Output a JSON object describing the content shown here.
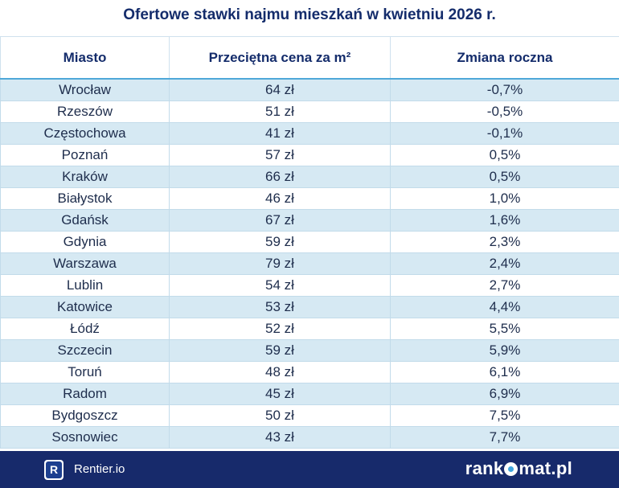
{
  "title": "Ofertowe stawki najmu mieszkań w kwietniu 2026 r.",
  "columns": [
    "Miasto",
    "Przeciętna cena za m²",
    "Zmiana roczna"
  ],
  "rows": [
    [
      "Wrocław",
      "64 zł",
      "-0,7%"
    ],
    [
      "Rzeszów",
      "51 zł",
      "-0,5%"
    ],
    [
      "Częstochowa",
      "41 zł",
      "-0,1%"
    ],
    [
      "Poznań",
      "57 zł",
      "0,5%"
    ],
    [
      "Kraków",
      "66 zł",
      "0,5%"
    ],
    [
      "Białystok",
      "46 zł",
      "1,0%"
    ],
    [
      "Gdańsk",
      "67 zł",
      "1,6%"
    ],
    [
      "Gdynia",
      "59 zł",
      "2,3%"
    ],
    [
      "Warszawa",
      "79 zł",
      "2,4%"
    ],
    [
      "Lublin",
      "54 zł",
      "2,7%"
    ],
    [
      "Katowice",
      "53 zł",
      "4,4%"
    ],
    [
      "Łódź",
      "52 zł",
      "5,5%"
    ],
    [
      "Szczecin",
      "59 zł",
      "5,9%"
    ],
    [
      "Toruń",
      "48 zł",
      "6,1%"
    ],
    [
      "Radom",
      "45 zł",
      "6,9%"
    ],
    [
      "Bydgoszcz",
      "50 zł",
      "7,5%"
    ],
    [
      "Sosnowiec",
      "43 zł",
      "7,7%"
    ]
  ],
  "footer": {
    "left_logo_letter": "R",
    "left_text": "Rentier.io",
    "right_brand_before": "rank",
    "right_brand_after": "mat.pl"
  },
  "colors": {
    "title": "#142c6b",
    "row_stripe": "#d6e9f3",
    "footer_bg": "#172a6b",
    "accent": "#3fa5de"
  }
}
